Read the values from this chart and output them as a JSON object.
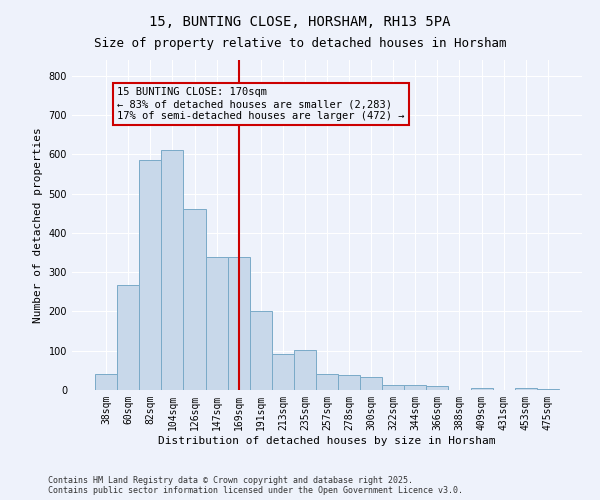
{
  "title": "15, BUNTING CLOSE, HORSHAM, RH13 5PA",
  "subtitle": "Size of property relative to detached houses in Horsham",
  "xlabel": "Distribution of detached houses by size in Horsham",
  "ylabel": "Number of detached properties",
  "bar_color": "#c8d8ea",
  "bar_edge_color": "#7aaac8",
  "background_color": "#eef2fb",
  "grid_color": "#ffffff",
  "annotation_box_color": "#cc0000",
  "annotation_line_color": "#cc0000",
  "categories": [
    "38sqm",
    "60sqm",
    "82sqm",
    "104sqm",
    "126sqm",
    "147sqm",
    "169sqm",
    "191sqm",
    "213sqm",
    "235sqm",
    "257sqm",
    "278sqm",
    "300sqm",
    "322sqm",
    "344sqm",
    "366sqm",
    "388sqm",
    "409sqm",
    "431sqm",
    "453sqm",
    "475sqm"
  ],
  "values": [
    40,
    268,
    585,
    610,
    460,
    338,
    338,
    200,
    92,
    102,
    42,
    38,
    33,
    13,
    13,
    10,
    0,
    6,
    0,
    5,
    3
  ],
  "annotation_text": "15 BUNTING CLOSE: 170sqm\n← 83% of detached houses are smaller (2,283)\n17% of semi-detached houses are larger (472) →",
  "ylim": [
    0,
    840
  ],
  "yticks": [
    0,
    100,
    200,
    300,
    400,
    500,
    600,
    700,
    800
  ],
  "footer": "Contains HM Land Registry data © Crown copyright and database right 2025.\nContains public sector information licensed under the Open Government Licence v3.0.",
  "title_fontsize": 10,
  "subtitle_fontsize": 9,
  "axis_fontsize": 8,
  "tick_fontsize": 7,
  "annotation_fontsize": 7.5,
  "footer_fontsize": 6
}
